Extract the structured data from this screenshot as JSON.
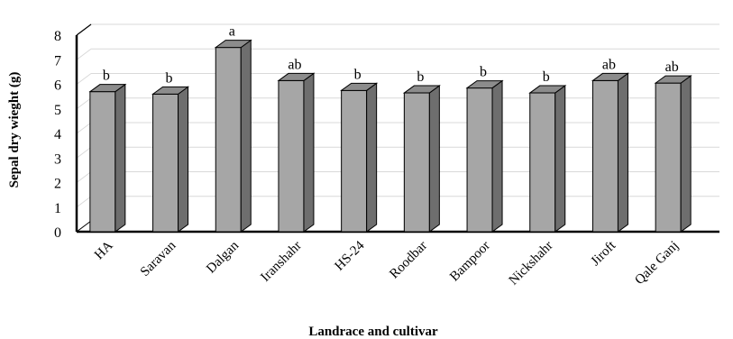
{
  "chart_data": {
    "type": "bar",
    "title": "",
    "xlabel": "Landrace and cultivar",
    "ylabel": "Sepal dry wieght (g)",
    "ylim": [
      0,
      8
    ],
    "yticks": [
      0,
      1,
      2,
      3,
      4,
      5,
      6,
      7,
      8
    ],
    "grid": true,
    "style": "3d-column",
    "categories": [
      "HA",
      "Saravan",
      "Dalgan",
      "Iranshahr",
      "HS-24",
      "Roodbar",
      "Bampoor",
      "Nickshahr",
      "Jiroft",
      "Qale Ganj"
    ],
    "values": [
      5.7,
      5.6,
      7.5,
      6.15,
      5.75,
      5.65,
      5.85,
      5.65,
      6.15,
      6.05
    ],
    "annotations": [
      "b",
      "b",
      "a",
      "ab",
      "b",
      "b",
      "b",
      "b",
      "ab",
      "ab"
    ],
    "colors": {
      "front": "#a6a6a6",
      "side": "#6e6e6e",
      "top": "#8c8c8c",
      "grid": "#d9d9d9",
      "wall": "#000000"
    }
  }
}
